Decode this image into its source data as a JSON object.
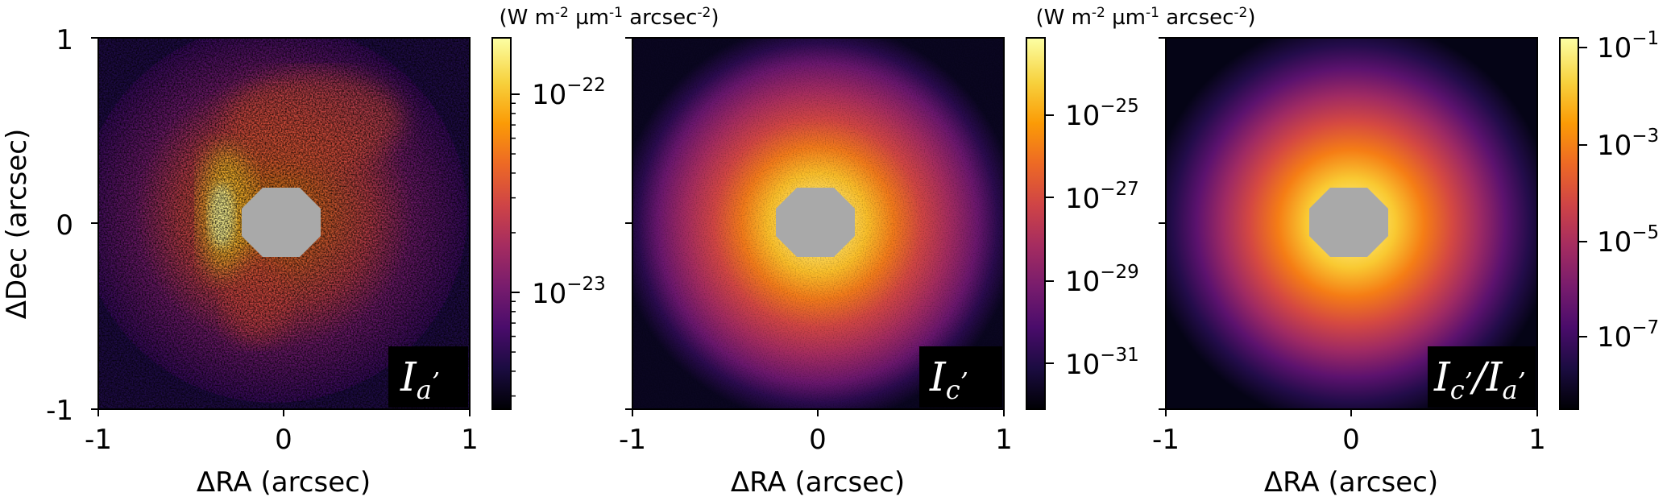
{
  "chart_data": [
    {
      "type": "heatmap",
      "panel_label": {
        "base": "I",
        "sub": "a",
        "prime": "’"
      },
      "colorbar_unit_label": "(W m-2 µm-1 arcsec-2)",
      "colorbar_unit_parts": {
        "a": "(W m",
        "b": "-2",
        "c": " µm",
        "d": "-1",
        "e": " arcsec",
        "f": "-2",
        "g": ")"
      },
      "colorbar_scale": "log",
      "colorbar_range": [
        2.5e-24,
        1.6e-22
      ],
      "colorbar_ticks": [
        {
          "exp": "−22"
        },
        {
          "exp": "−23"
        }
      ],
      "xlabel": "ΔRA (arcsec)",
      "ylabel": "ΔDec (arcsec)",
      "xticks": [
        "-1",
        "0",
        "1"
      ],
      "yticks": [
        "1",
        "0",
        "-1"
      ],
      "xlim": [
        -1,
        1
      ],
      "ylim": [
        -1,
        1
      ],
      "colormap": "inferno",
      "mask": "central grey occulter"
    },
    {
      "type": "heatmap",
      "panel_label": {
        "base": "I",
        "sub": "c",
        "prime": "’"
      },
      "colorbar_unit_label": "(W m-2 µm-1 arcsec-2)",
      "colorbar_unit_parts": {
        "a": "(W m",
        "b": "-2",
        "c": " µm",
        "d": "-1",
        "e": " arcsec",
        "f": "-2",
        "g": ")"
      },
      "colorbar_scale": "log",
      "colorbar_range": [
        2e-32,
        5e-24
      ],
      "colorbar_ticks": [
        {
          "exp": "−25"
        },
        {
          "exp": "−27"
        },
        {
          "exp": "−29"
        },
        {
          "exp": "−31"
        }
      ],
      "xlabel": "ΔRA (arcsec)",
      "xticks": [
        "-1",
        "0",
        "1"
      ],
      "xlim": [
        -1,
        1
      ],
      "ylim": [
        -1,
        1
      ],
      "colormap": "inferno",
      "mask": "central grey occulter"
    },
    {
      "type": "heatmap",
      "panel_label": {
        "base": "I",
        "sub": "c",
        "prime": "’",
        "divider": "/",
        "base2": "I",
        "sub2": "a",
        "prime2": "’"
      },
      "colorbar_scale": "log",
      "colorbar_range": [
        3e-09,
        0.15
      ],
      "colorbar_ticks": [
        {
          "exp": "−1"
        },
        {
          "exp": "−3"
        },
        {
          "exp": "−5"
        },
        {
          "exp": "−7"
        }
      ],
      "xlabel": "ΔRA (arcsec)",
      "xticks": [
        "-1",
        "0",
        "1"
      ],
      "xlim": [
        -1,
        1
      ],
      "ylim": [
        -1,
        1
      ],
      "colormap": "inferno",
      "mask": "central grey occulter"
    }
  ],
  "colors": {
    "occulter": "#a9a9a9",
    "inferno": [
      "#000004",
      "#1b0c41",
      "#4a0c6b",
      "#781c6d",
      "#a52c60",
      "#cf4446",
      "#ed6925",
      "#fb9b06",
      "#f7d13d",
      "#fcffa4"
    ]
  },
  "tick_base": "10"
}
